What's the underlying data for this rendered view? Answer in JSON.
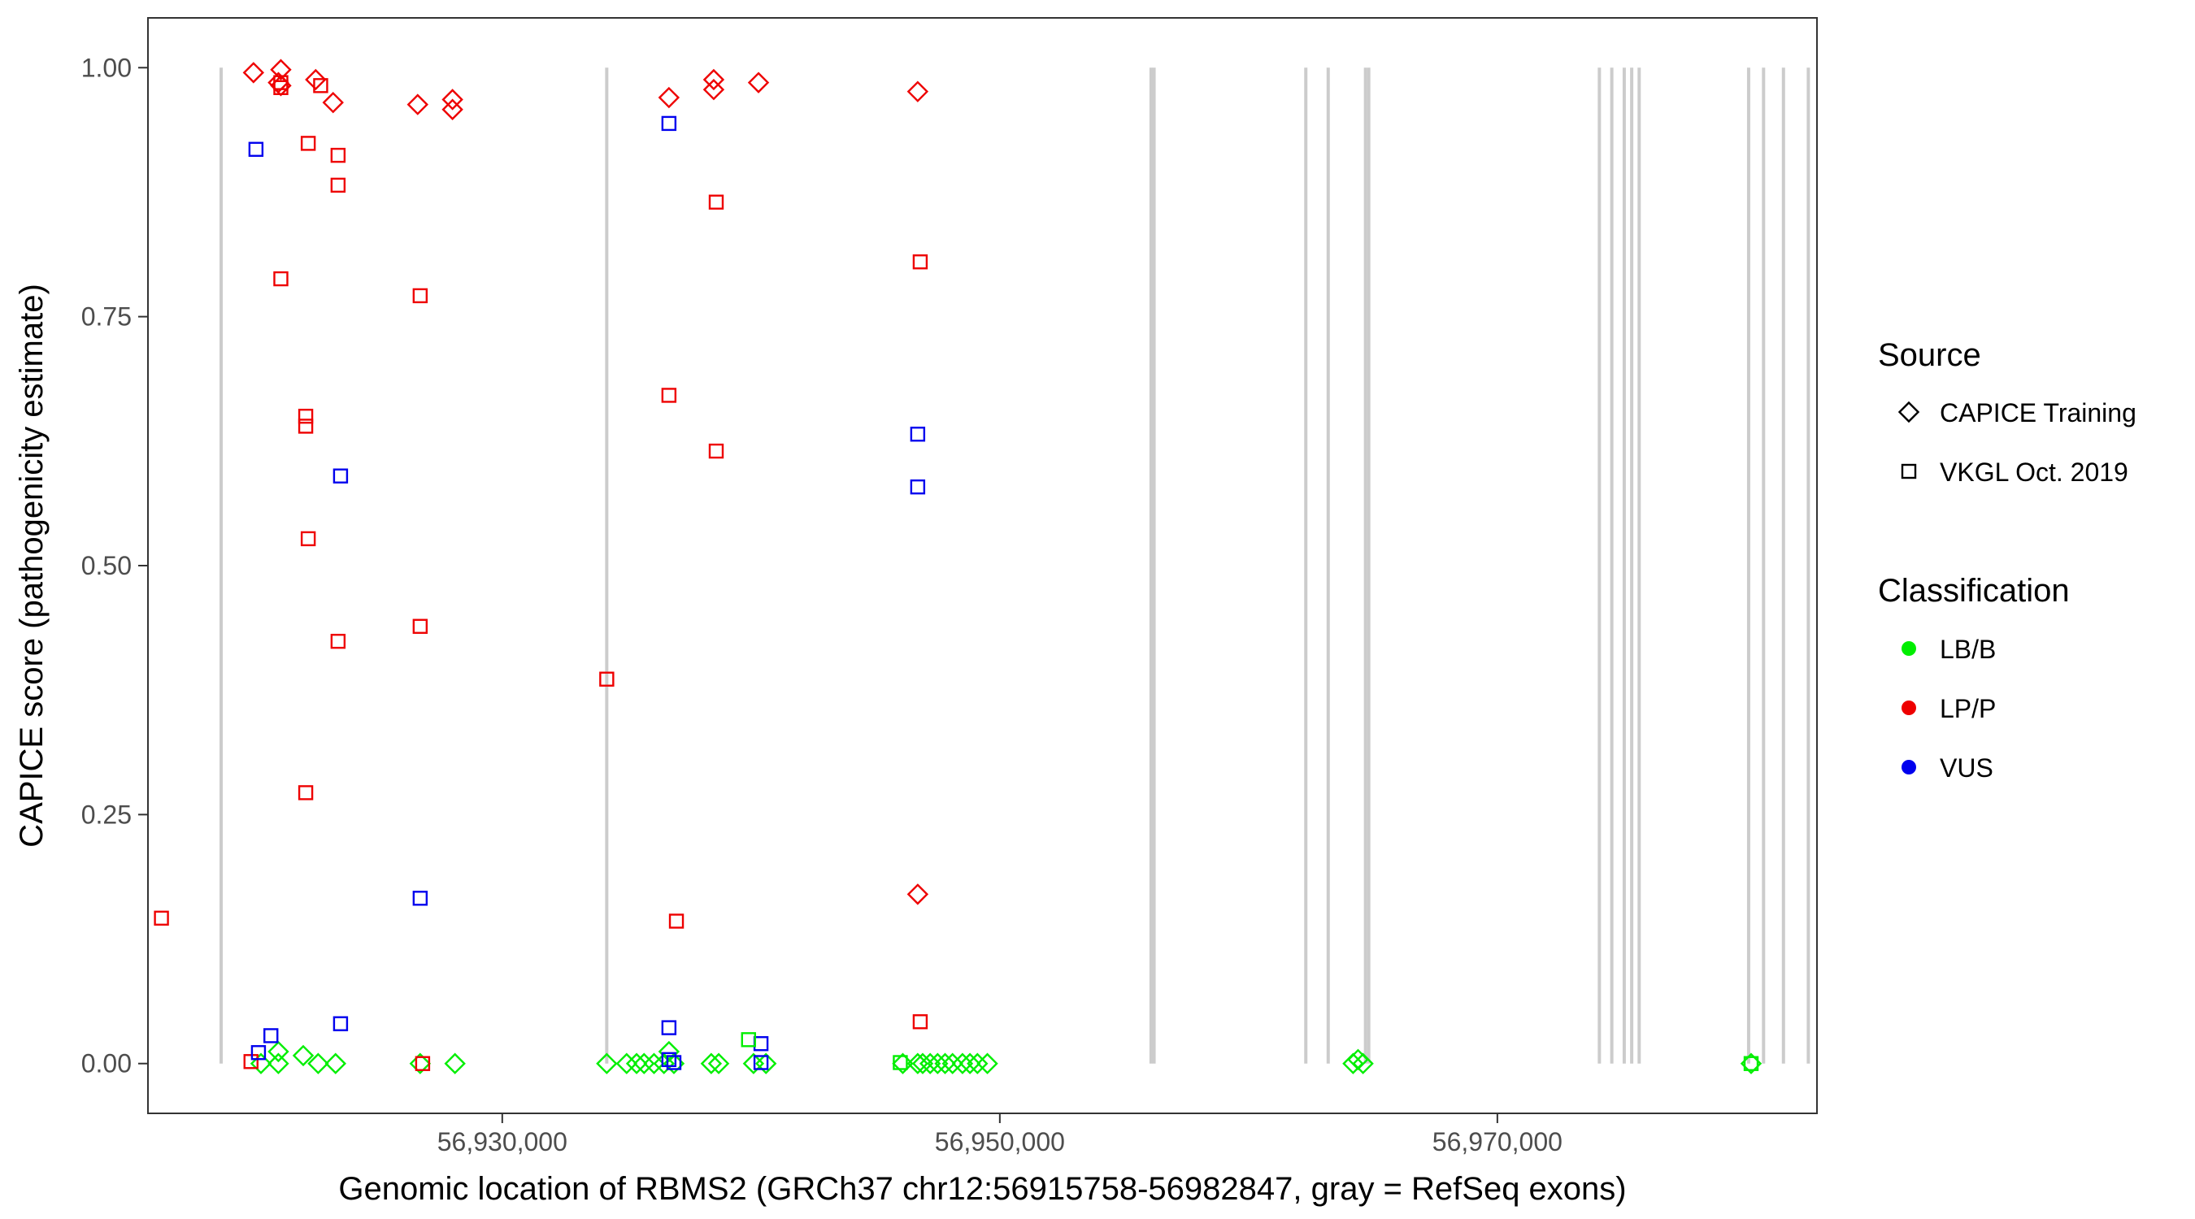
{
  "chart_data": {
    "type": "scatter",
    "xlabel": "Genomic location of RBMS2 (GRCh37 chr12:56915758-56982847, gray = RefSeq exons)",
    "ylabel": "CAPICE score (pathogenicity estimate)",
    "xlim": [
      15758,
      82847
    ],
    "ylim": [
      -0.05,
      1.05
    ],
    "x_ticks": [
      30000,
      50000,
      70000
    ],
    "x_tick_labels": [
      "56,930,000",
      "56,950,000",
      "56,970,000"
    ],
    "y_ticks": [
      0,
      0.25,
      0.5,
      0.75,
      1.0
    ],
    "y_tick_labels": [
      "0.00",
      "0.25",
      "0.50",
      "0.75",
      "1.00"
    ],
    "grid": false,
    "legend_position": "right",
    "exons": [
      18700,
      34200,
      56080,
      56200,
      62300,
      63200,
      64700,
      64830,
      74100,
      74600,
      75100,
      75400,
      75700,
      80100,
      80700,
      81500,
      82500
    ],
    "legend": {
      "source_title": "Source",
      "source_items": [
        {
          "shape": "diamond",
          "label": "CAPICE Training"
        },
        {
          "shape": "square",
          "label": "VKGL Oct. 2019"
        }
      ],
      "class_title": "Classification",
      "class_items": [
        {
          "key": "LB/B",
          "label": "LB/B",
          "color": "#00ee00"
        },
        {
          "key": "LP/P",
          "label": "LP/P",
          "color": "#ee0000"
        },
        {
          "key": "VUS",
          "label": "VUS",
          "color": "#0000ee"
        }
      ]
    },
    "colors": {
      "LB/B": "#00ee00",
      "LP/P": "#ee0000",
      "VUS": "#0000ee",
      "exon": "#cccccc"
    },
    "series": [
      {
        "source": "CAPICE Training",
        "class": "LP/P",
        "points": [
          [
            20000,
            0.995
          ],
          [
            21100,
            0.998
          ],
          [
            21000,
            0.985
          ],
          [
            21100,
            0.982
          ],
          [
            22500,
            0.988
          ],
          [
            23200,
            0.965
          ],
          [
            26600,
            0.963
          ],
          [
            28000,
            0.968
          ],
          [
            28000,
            0.958
          ],
          [
            36700,
            0.97
          ],
          [
            38500,
            0.988
          ],
          [
            38500,
            0.978
          ],
          [
            40300,
            0.985
          ],
          [
            46700,
            0.976
          ],
          [
            46700,
            0.17
          ]
        ]
      },
      {
        "source": "CAPICE Training",
        "class": "LB/B",
        "points": [
          [
            20300,
            0.0
          ],
          [
            21000,
            0.012
          ],
          [
            21000,
            0.0
          ],
          [
            22000,
            0.008
          ],
          [
            22600,
            0.0
          ],
          [
            23300,
            0.0
          ],
          [
            26700,
            0.0
          ],
          [
            28100,
            0.0
          ],
          [
            34200,
            0.0
          ],
          [
            35000,
            0.0
          ],
          [
            35400,
            0.0
          ],
          [
            35700,
            0.0
          ],
          [
            36100,
            0.0
          ],
          [
            36500,
            0.0
          ],
          [
            36700,
            0.012
          ],
          [
            36900,
            0.0
          ],
          [
            38400,
            0.0
          ],
          [
            38700,
            0.0
          ],
          [
            40100,
            0.0
          ],
          [
            40600,
            0.0
          ],
          [
            46100,
            0.0
          ],
          [
            46700,
            0.0
          ],
          [
            46900,
            0.0
          ],
          [
            47200,
            0.0
          ],
          [
            47500,
            0.0
          ],
          [
            47800,
            0.0
          ],
          [
            48100,
            0.0
          ],
          [
            48500,
            0.0
          ],
          [
            48800,
            0.0
          ],
          [
            49100,
            0.0
          ],
          [
            49500,
            0.0
          ],
          [
            64200,
            0.0
          ],
          [
            64400,
            0.004
          ],
          [
            64600,
            0.0
          ],
          [
            80200,
            0.0
          ]
        ]
      },
      {
        "source": "VKGL Oct. 2019",
        "class": "LP/P",
        "points": [
          [
            16300,
            0.146
          ],
          [
            19900,
            0.002
          ],
          [
            21100,
            0.788
          ],
          [
            21100,
            0.985
          ],
          [
            21100,
            0.98
          ],
          [
            22200,
            0.924
          ],
          [
            22100,
            0.65
          ],
          [
            22100,
            0.64
          ],
          [
            22200,
            0.527
          ],
          [
            22100,
            0.272
          ],
          [
            22700,
            0.982
          ],
          [
            23400,
            0.912
          ],
          [
            23400,
            0.882
          ],
          [
            23400,
            0.424
          ],
          [
            26700,
            0.771
          ],
          [
            26700,
            0.439
          ],
          [
            26800,
            0.0
          ],
          [
            34200,
            0.386
          ],
          [
            36700,
            0.671
          ],
          [
            37000,
            0.143
          ],
          [
            38600,
            0.865
          ],
          [
            38600,
            0.615
          ],
          [
            46800,
            0.805
          ],
          [
            46800,
            0.042
          ]
        ]
      },
      {
        "source": "VKGL Oct. 2019",
        "class": "VUS",
        "points": [
          [
            20100,
            0.918
          ],
          [
            20200,
            0.011
          ],
          [
            20700,
            0.028
          ],
          [
            23500,
            0.59
          ],
          [
            23500,
            0.04
          ],
          [
            26700,
            0.166
          ],
          [
            36700,
            0.944
          ],
          [
            36700,
            0.036
          ],
          [
            36700,
            0.004
          ],
          [
            36900,
            0.001
          ],
          [
            40400,
            0.02
          ],
          [
            40400,
            0.001
          ],
          [
            46700,
            0.632
          ],
          [
            46700,
            0.579
          ]
        ]
      },
      {
        "source": "VKGL Oct. 2019",
        "class": "LB/B",
        "points": [
          [
            39900,
            0.024
          ],
          [
            46000,
            0.001
          ],
          [
            80200,
            0.0
          ]
        ]
      }
    ]
  }
}
